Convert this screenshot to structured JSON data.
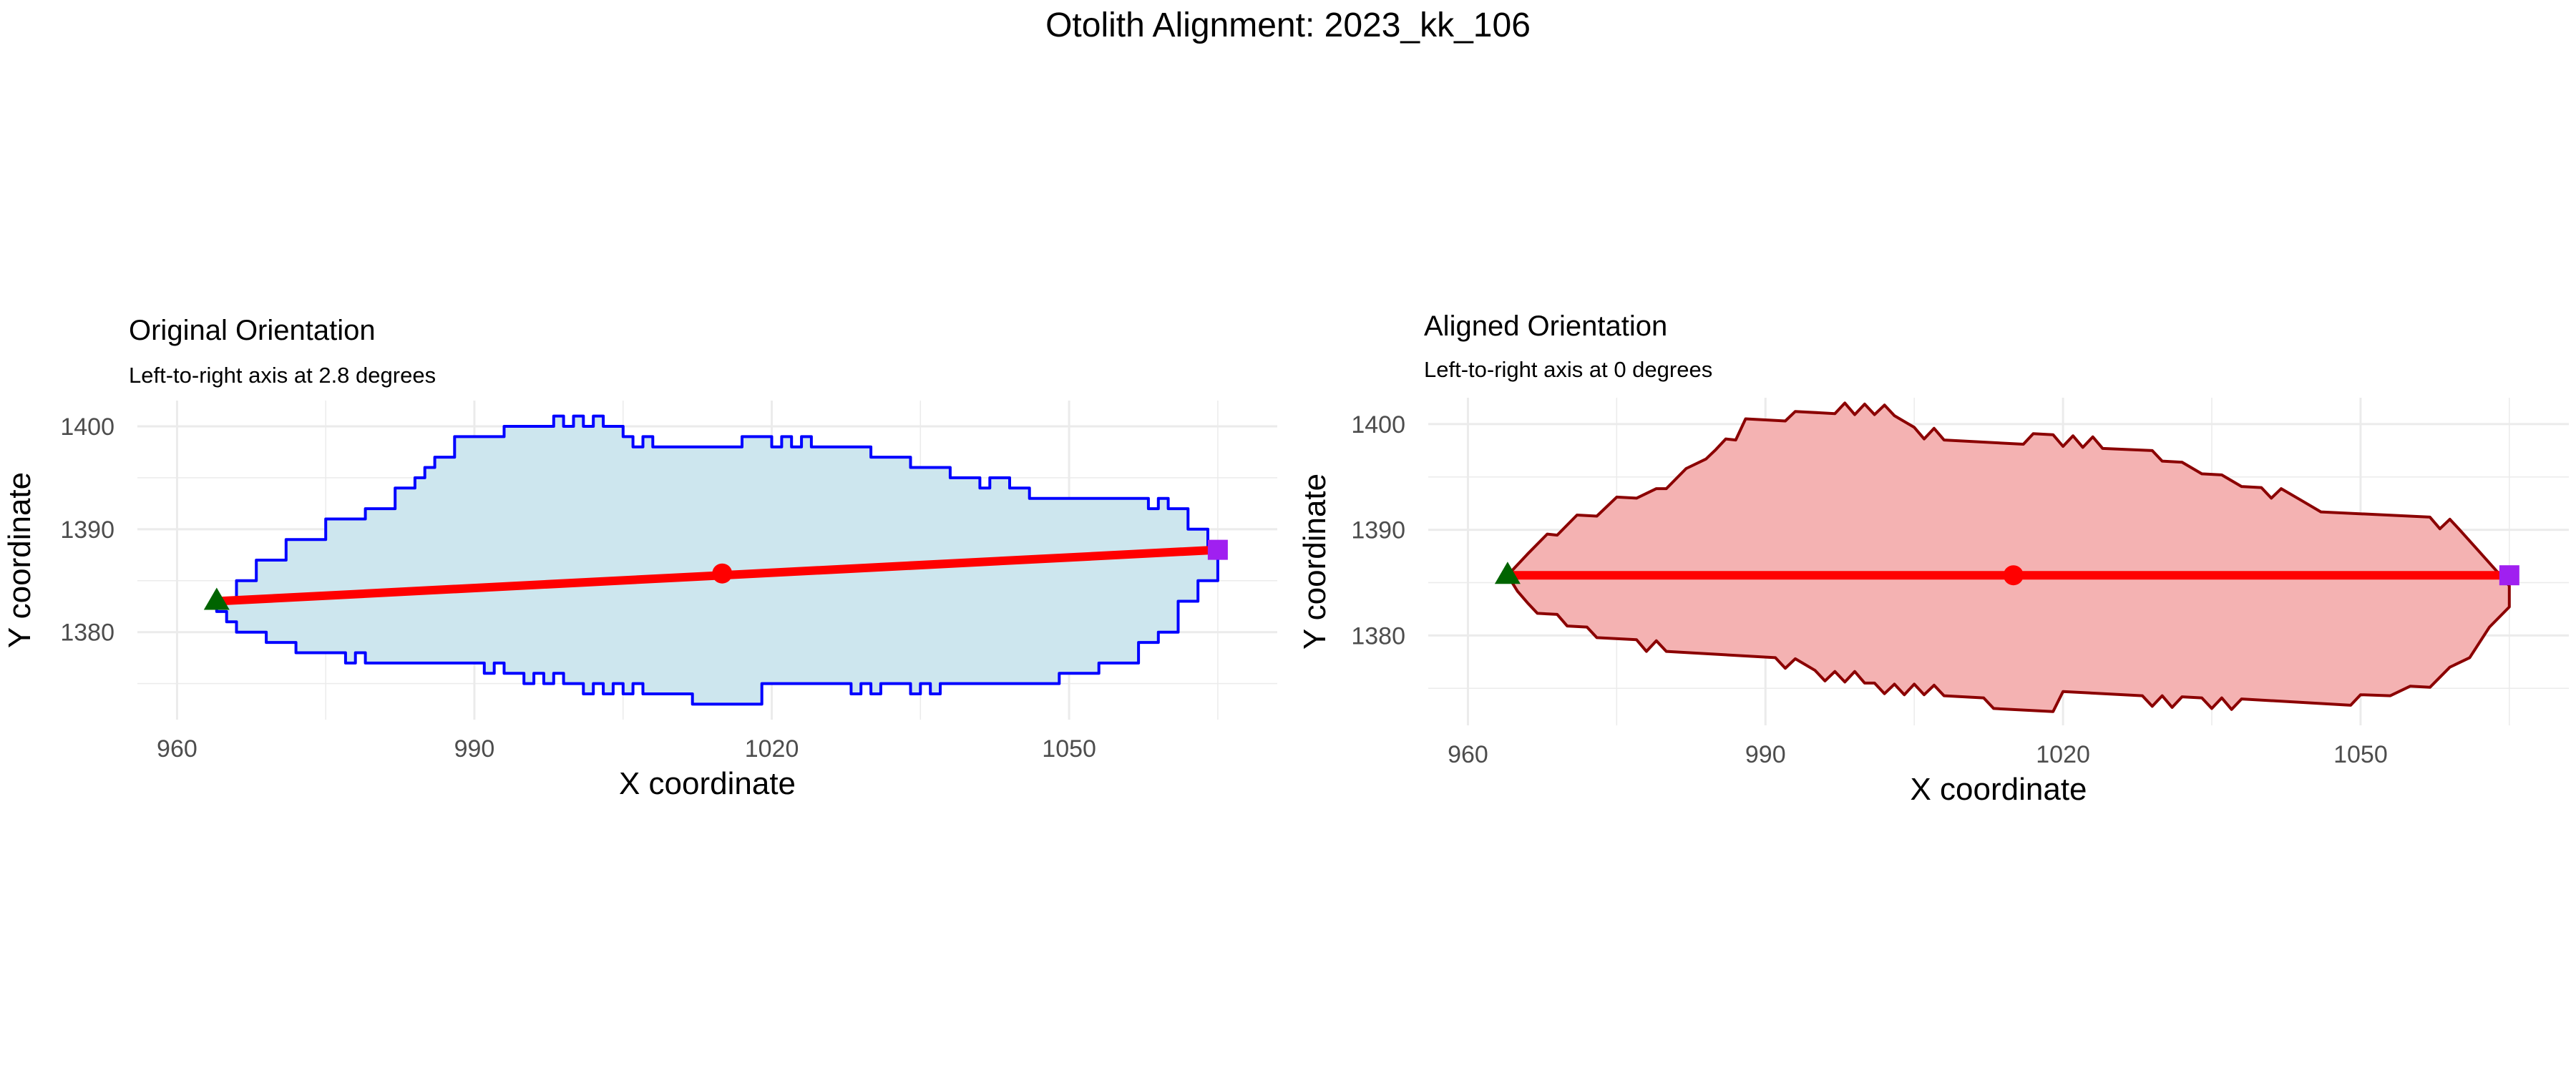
{
  "figure": {
    "title": "Otolith Alignment: 2023_kk_106"
  },
  "colors": {
    "grid": "#ebebeb",
    "axis_line": "#f2f2f2",
    "axis_color": "#ff0000",
    "centroid": "#ff0000",
    "left_point": "#006400",
    "right_point": "#a020f0"
  },
  "chart_data": [
    {
      "type": "area",
      "title": "Original Orientation",
      "subtitle": "Left-to-right axis at 2.8 degrees",
      "xlabel": "X coordinate",
      "ylabel": "Y coordinate",
      "xlim": [
        956,
        1071
      ],
      "ylim": [
        1371.5,
        1402.5
      ],
      "x_ticks": [
        960,
        990,
        1020,
        1050
      ],
      "y_ticks": [
        1380,
        1390,
        1400
      ],
      "grid": true,
      "legend": "none",
      "fill_color": "#cde6ee",
      "outline_color": "#0000ff",
      "outline_style": "step",
      "outline": [
        [
          964,
          1383
        ],
        [
          966,
          1385
        ],
        [
          968,
          1387
        ],
        [
          969,
          1387
        ],
        [
          971,
          1389
        ],
        [
          973,
          1389
        ],
        [
          975,
          1391
        ],
        [
          977,
          1391
        ],
        [
          979,
          1392
        ],
        [
          980,
          1392
        ],
        [
          982,
          1394
        ],
        [
          984,
          1395
        ],
        [
          985,
          1396
        ],
        [
          986,
          1397
        ],
        [
          987,
          1397
        ],
        [
          988,
          1399
        ],
        [
          992,
          1399
        ],
        [
          993,
          1400
        ],
        [
          997,
          1400
        ],
        [
          998,
          1401
        ],
        [
          999,
          1400
        ],
        [
          1000,
          1401
        ],
        [
          1001,
          1400
        ],
        [
          1002,
          1401
        ],
        [
          1003,
          1400
        ],
        [
          1005,
          1399
        ],
        [
          1006,
          1398
        ],
        [
          1007,
          1399
        ],
        [
          1008,
          1398
        ],
        [
          1016,
          1398
        ],
        [
          1017,
          1399
        ],
        [
          1019,
          1399
        ],
        [
          1020,
          1398
        ],
        [
          1021,
          1399
        ],
        [
          1022,
          1398
        ],
        [
          1023,
          1399
        ],
        [
          1024,
          1398
        ],
        [
          1029,
          1398
        ],
        [
          1030,
          1397
        ],
        [
          1032,
          1397
        ],
        [
          1034,
          1396
        ],
        [
          1036,
          1396
        ],
        [
          1038,
          1395
        ],
        [
          1040,
          1395
        ],
        [
          1041,
          1394
        ],
        [
          1042,
          1395
        ],
        [
          1044,
          1394
        ],
        [
          1046,
          1393
        ],
        [
          1057,
          1393
        ],
        [
          1058,
          1392
        ],
        [
          1059,
          1393
        ],
        [
          1060,
          1392
        ],
        [
          1062,
          1390
        ],
        [
          1064,
          1388
        ],
        [
          1065,
          1387
        ],
        [
          1065,
          1385
        ],
        [
          1063,
          1383
        ],
        [
          1061,
          1380
        ],
        [
          1059,
          1379
        ],
        [
          1057,
          1377
        ],
        [
          1055,
          1377
        ],
        [
          1053,
          1376
        ],
        [
          1050,
          1376
        ],
        [
          1049,
          1375
        ],
        [
          1038,
          1375
        ],
        [
          1037,
          1374
        ],
        [
          1036,
          1375
        ],
        [
          1035,
          1374
        ],
        [
          1034,
          1375
        ],
        [
          1032,
          1375
        ],
        [
          1031,
          1374
        ],
        [
          1030,
          1375
        ],
        [
          1029,
          1374
        ],
        [
          1028,
          1375
        ],
        [
          1020,
          1375
        ],
        [
          1019,
          1373
        ],
        [
          1013,
          1373
        ],
        [
          1012,
          1374
        ],
        [
          1008,
          1374
        ],
        [
          1007,
          1375
        ],
        [
          1006,
          1374
        ],
        [
          1005,
          1375
        ],
        [
          1004,
          1374
        ],
        [
          1003,
          1375
        ],
        [
          1002,
          1374
        ],
        [
          1001,
          1375
        ],
        [
          1000,
          1375
        ],
        [
          999,
          1376
        ],
        [
          998,
          1375
        ],
        [
          997,
          1376
        ],
        [
          996,
          1375
        ],
        [
          995,
          1376
        ],
        [
          993,
          1377
        ],
        [
          992,
          1376
        ],
        [
          991,
          1377
        ],
        [
          980,
          1377
        ],
        [
          979,
          1378
        ],
        [
          978,
          1377
        ],
        [
          977,
          1378
        ],
        [
          973,
          1378
        ],
        [
          972,
          1379
        ],
        [
          970,
          1379
        ],
        [
          969,
          1380
        ],
        [
          967,
          1380
        ],
        [
          966,
          1381
        ],
        [
          965,
          1382
        ],
        [
          964,
          1383
        ]
      ],
      "axis_line": {
        "from": [
          964,
          1383
        ],
        "to": [
          1065,
          1388
        ]
      },
      "centroid": [
        1015,
        1385.7
      ],
      "left_point": [
        964,
        1383
      ],
      "right_point": [
        1065,
        1388
      ]
    },
    {
      "type": "area",
      "title": "Aligned Orientation",
      "subtitle": "Left-to-right axis at 0 degrees",
      "xlabel": "X coordinate",
      "ylabel": "Y coordinate",
      "xlim": [
        956,
        1071
      ],
      "ylim": [
        1371.5,
        1402.5
      ],
      "x_ticks": [
        960,
        990,
        1020,
        1050
      ],
      "y_ticks": [
        1380,
        1390,
        1400
      ],
      "grid": true,
      "legend": "none",
      "fill_color": "#f4b2b2",
      "outline_color": "#8b0000",
      "outline_style": "linear",
      "outline": [
        [
          964,
          1385.7
        ],
        [
          966,
          1387.7
        ],
        [
          968,
          1389.6
        ],
        [
          969,
          1389.5
        ],
        [
          971,
          1391.4
        ],
        [
          973,
          1391.3
        ],
        [
          975,
          1393.1
        ],
        [
          977,
          1393.0
        ],
        [
          979,
          1393.9
        ],
        [
          980,
          1393.9
        ],
        [
          982,
          1395.8
        ],
        [
          984,
          1396.7
        ],
        [
          985,
          1397.6
        ],
        [
          986,
          1398.6
        ],
        [
          987,
          1398.5
        ],
        [
          988,
          1400.5
        ],
        [
          992,
          1400.3
        ],
        [
          993,
          1401.2
        ],
        [
          997,
          1401.0
        ],
        [
          998,
          1402.0
        ],
        [
          999,
          1400.9
        ],
        [
          1000,
          1401.9
        ],
        [
          1001,
          1400.9
        ],
        [
          1002,
          1401.8
        ],
        [
          1003,
          1400.8
        ],
        [
          1005,
          1399.7
        ],
        [
          1006,
          1398.6
        ],
        [
          1007,
          1399.6
        ],
        [
          1008,
          1398.5
        ],
        [
          1016,
          1398.1
        ],
        [
          1017,
          1399.1
        ],
        [
          1019,
          1399.0
        ],
        [
          1020,
          1397.9
        ],
        [
          1021,
          1398.9
        ],
        [
          1022,
          1397.8
        ],
        [
          1023,
          1398.8
        ],
        [
          1024,
          1397.7
        ],
        [
          1029,
          1397.5
        ],
        [
          1030,
          1396.5
        ],
        [
          1032,
          1396.4
        ],
        [
          1034,
          1395.3
        ],
        [
          1036,
          1395.2
        ],
        [
          1038,
          1394.1
        ],
        [
          1040,
          1394.0
        ],
        [
          1041,
          1393.0
        ],
        [
          1042,
          1393.9
        ],
        [
          1044,
          1392.8
        ],
        [
          1046,
          1391.7
        ],
        [
          1057,
          1391.2
        ],
        [
          1058,
          1390.1
        ],
        [
          1059,
          1391.0
        ],
        [
          1060,
          1390.0
        ],
        [
          1062,
          1387.9
        ],
        [
          1064,
          1385.8
        ],
        [
          1065,
          1384.7
        ],
        [
          1065,
          1382.7
        ],
        [
          1063,
          1380.8
        ],
        [
          1061,
          1377.9
        ],
        [
          1059,
          1377.0
        ],
        [
          1057,
          1375.1
        ],
        [
          1055,
          1375.2
        ],
        [
          1053,
          1374.3
        ],
        [
          1050,
          1374.4
        ],
        [
          1049,
          1373.4
        ],
        [
          1038,
          1374.0
        ],
        [
          1037,
          1373.0
        ],
        [
          1036,
          1374.1
        ],
        [
          1035,
          1373.1
        ],
        [
          1034,
          1374.1
        ],
        [
          1032,
          1374.2
        ],
        [
          1031,
          1373.2
        ],
        [
          1030,
          1374.3
        ],
        [
          1029,
          1373.3
        ],
        [
          1028,
          1374.3
        ],
        [
          1020,
          1374.7
        ],
        [
          1019,
          1372.8
        ],
        [
          1013,
          1373.1
        ],
        [
          1012,
          1374.1
        ],
        [
          1008,
          1374.3
        ],
        [
          1007,
          1375.3
        ],
        [
          1006,
          1374.4
        ],
        [
          1005,
          1375.4
        ],
        [
          1004,
          1374.4
        ],
        [
          1003,
          1375.4
        ],
        [
          1002,
          1374.5
        ],
        [
          1001,
          1375.5
        ],
        [
          1000,
          1375.5
        ],
        [
          999,
          1376.6
        ],
        [
          998,
          1375.6
        ],
        [
          997,
          1376.6
        ],
        [
          996,
          1375.7
        ],
        [
          995,
          1376.7
        ],
        [
          993,
          1377.8
        ],
        [
          992,
          1376.9
        ],
        [
          991,
          1377.9
        ],
        [
          980,
          1378.5
        ],
        [
          979,
          1379.5
        ],
        [
          978,
          1378.5
        ],
        [
          977,
          1379.6
        ],
        [
          973,
          1379.8
        ],
        [
          972,
          1380.8
        ],
        [
          970,
          1380.9
        ],
        [
          969,
          1382.0
        ],
        [
          967,
          1382.1
        ],
        [
          966,
          1383.1
        ],
        [
          965,
          1384.2
        ],
        [
          964,
          1385.7
        ]
      ],
      "axis_line": {
        "from": [
          964,
          1385.7
        ],
        "to": [
          1065,
          1385.7
        ]
      },
      "centroid": [
        1015,
        1385.7
      ],
      "left_point": [
        964,
        1385.7
      ],
      "right_point": [
        1065,
        1385.7
      ]
    }
  ]
}
